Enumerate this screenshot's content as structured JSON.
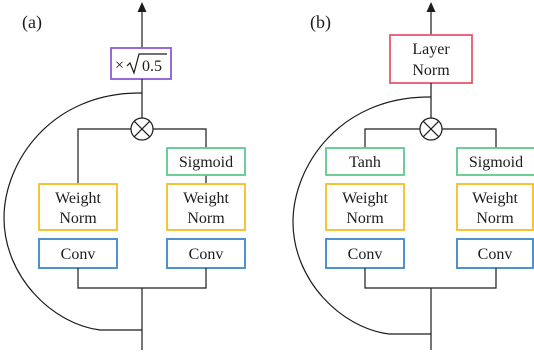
{
  "colors": {
    "weight_norm": "#f5bd1f",
    "conv": "#3a87c8",
    "gate": "#5ec98d",
    "scale": "#8a5cd6",
    "layer_norm": "#e8576b"
  },
  "panel_a": {
    "label": "(a)",
    "scale_prefix": "×",
    "scale_value": "0.5",
    "multiply_icon": "circled-times-icon",
    "right_branch": {
      "gate": "Sigmoid",
      "weight_norm": [
        "Weight",
        "Norm"
      ],
      "conv": "Conv"
    },
    "left_branch": {
      "weight_norm": [
        "Weight",
        "Norm"
      ],
      "conv": "Conv"
    }
  },
  "panel_b": {
    "label": "(b)",
    "layer_norm": [
      "Layer",
      "Norm"
    ],
    "multiply_icon": "circled-times-icon",
    "left_branch": {
      "gate": "Tanh",
      "weight_norm": [
        "Weight",
        "Norm"
      ],
      "conv": "Conv"
    },
    "right_branch": {
      "gate": "Sigmoid",
      "weight_norm": [
        "Weight",
        "Norm"
      ],
      "conv": "Conv"
    }
  }
}
